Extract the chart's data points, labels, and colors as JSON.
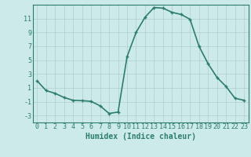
{
  "x": [
    0,
    1,
    2,
    3,
    4,
    5,
    6,
    7,
    8,
    9,
    10,
    11,
    12,
    13,
    14,
    15,
    16,
    17,
    18,
    19,
    20,
    21,
    22,
    23
  ],
  "y": [
    2.0,
    0.6,
    0.2,
    -0.4,
    -0.8,
    -0.85,
    -0.95,
    -1.6,
    -2.7,
    -2.5,
    5.5,
    9.0,
    11.2,
    12.6,
    12.5,
    11.9,
    11.6,
    10.9,
    7.0,
    4.5,
    2.5,
    1.2,
    -0.5,
    -0.8
  ],
  "line_color": "#2d7d6e",
  "marker": "+",
  "marker_size": 3,
  "xlabel": "Humidex (Indice chaleur)",
  "xlim": [
    -0.5,
    23.5
  ],
  "ylim": [
    -4,
    13
  ],
  "yticks": [
    -3,
    -1,
    1,
    3,
    5,
    7,
    9,
    11
  ],
  "xticks": [
    0,
    1,
    2,
    3,
    4,
    5,
    6,
    7,
    8,
    9,
    10,
    11,
    12,
    13,
    14,
    15,
    16,
    17,
    18,
    19,
    20,
    21,
    22,
    23
  ],
  "bg_color": "#cdeaea",
  "grid_color": "#b0cece",
  "line_width": 1.2,
  "tick_font_size": 6,
  "xlabel_font_size": 7
}
